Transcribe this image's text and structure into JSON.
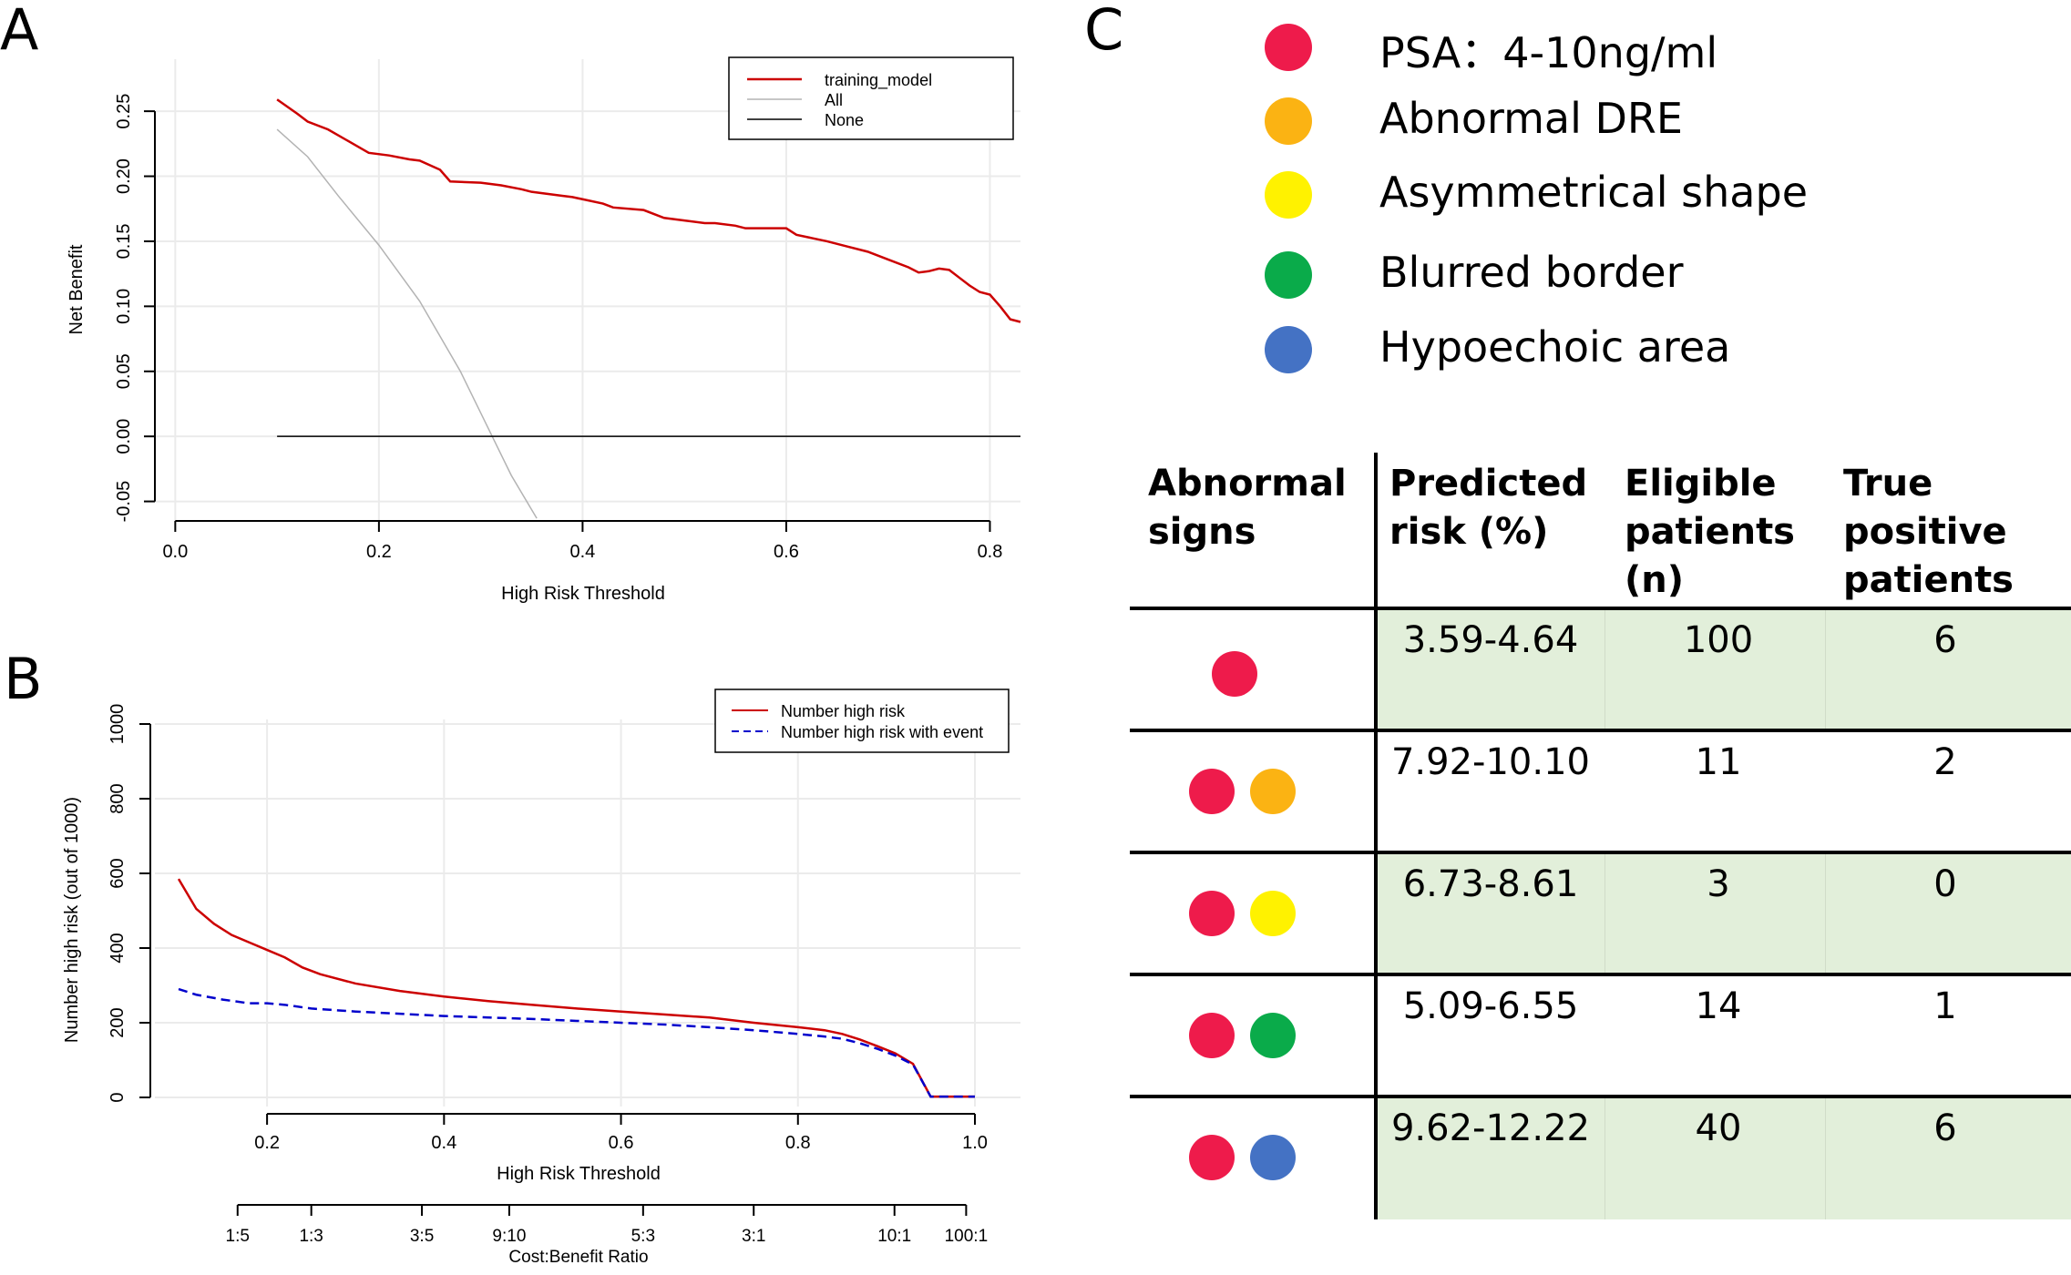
{
  "panel_labels": {
    "a": "A",
    "b": "B",
    "c": "C"
  },
  "colors": {
    "red": "#cc0000",
    "gray": "#b3b3b3",
    "black": "#000000",
    "blue": "#0000cc",
    "grid": "#ebebeb",
    "psa": "#ee1b4b",
    "dre": "#fbb313",
    "shape": "#fff200",
    "border": "#0aab4a",
    "hypo": "#4472c4",
    "row_shade": "#e2efda"
  },
  "chart_data": [
    {
      "type": "line",
      "xlabel": "High Risk Threshold",
      "ylabel": "Net Benefit",
      "xlim": [
        -0.02,
        0.83
      ],
      "ylim": [
        -0.065,
        0.29
      ],
      "x_ticks": [
        "0.0",
        "0.2",
        "0.4",
        "0.6",
        "0.8"
      ],
      "x_tick_values": [
        0.0,
        0.2,
        0.4,
        0.6,
        0.8
      ],
      "y_ticks": [
        "-0.05",
        "0.00",
        "0.05",
        "0.10",
        "0.15",
        "0.20",
        "0.25"
      ],
      "y_tick_values": [
        -0.05,
        0.0,
        0.05,
        0.1,
        0.15,
        0.2,
        0.25
      ],
      "legend": [
        "training_model",
        "All",
        "None"
      ],
      "series": [
        {
          "name": "training_model",
          "x": [
            0.1,
            0.12,
            0.13,
            0.15,
            0.17,
            0.19,
            0.21,
            0.23,
            0.24,
            0.26,
            0.27,
            0.3,
            0.32,
            0.34,
            0.35,
            0.38,
            0.39,
            0.42,
            0.43,
            0.46,
            0.48,
            0.5,
            0.52,
            0.53,
            0.55,
            0.56,
            0.6,
            0.61,
            0.64,
            0.66,
            0.68,
            0.7,
            0.72,
            0.73,
            0.74,
            0.75,
            0.76,
            0.77,
            0.78,
            0.79,
            0.8,
            0.81,
            0.82,
            0.83
          ],
          "y": [
            0.259,
            0.248,
            0.242,
            0.236,
            0.227,
            0.218,
            0.216,
            0.213,
            0.212,
            0.205,
            0.196,
            0.195,
            0.193,
            0.19,
            0.188,
            0.185,
            0.184,
            0.179,
            0.176,
            0.174,
            0.168,
            0.166,
            0.164,
            0.164,
            0.162,
            0.16,
            0.16,
            0.155,
            0.15,
            0.146,
            0.142,
            0.136,
            0.13,
            0.126,
            0.127,
            0.129,
            0.128,
            0.122,
            0.116,
            0.111,
            0.109,
            0.1,
            0.09,
            0.088
          ]
        },
        {
          "name": "All",
          "x": [
            0.1,
            0.13,
            0.16,
            0.2,
            0.24,
            0.28,
            0.31,
            0.33,
            0.355
          ],
          "y": [
            0.236,
            0.215,
            0.185,
            0.147,
            0.104,
            0.05,
            0.002,
            -0.03,
            -0.063
          ]
        },
        {
          "name": "None",
          "x": [
            0.1,
            0.83
          ],
          "y": [
            0.0,
            0.0
          ]
        }
      ]
    },
    {
      "type": "line",
      "xlabel": "High Risk Threshold",
      "ylabel": "Number high risk (out of 1000)",
      "xlim": [
        0.1,
        1.0
      ],
      "ylim": [
        0,
        1000
      ],
      "x_ticks": [
        "0.2",
        "0.4",
        "0.6",
        "0.8",
        "1.0"
      ],
      "x_tick_values": [
        0.2,
        0.4,
        0.6,
        0.8,
        1.0
      ],
      "y_ticks": [
        "0",
        "200",
        "400",
        "600",
        "800",
        "1000"
      ],
      "y_tick_values": [
        0,
        200,
        400,
        600,
        800,
        1000
      ],
      "second_axis_label": "Cost:Benefit Ratio",
      "second_axis_ticks": [
        "1:5",
        "1:3",
        "3:5",
        "9:10",
        "5:3",
        "3:1",
        "10:1",
        "100:1"
      ],
      "second_axis_tick_values": [
        0.1667,
        0.25,
        0.375,
        0.4737,
        0.625,
        0.75,
        0.9091,
        0.9901
      ],
      "legend": [
        "Number high risk",
        "Number high risk with event"
      ],
      "series": [
        {
          "name": "Number high risk",
          "x": [
            0.1,
            0.12,
            0.14,
            0.16,
            0.18,
            0.2,
            0.22,
            0.24,
            0.26,
            0.3,
            0.35,
            0.4,
            0.45,
            0.5,
            0.55,
            0.6,
            0.65,
            0.7,
            0.75,
            0.8,
            0.83,
            0.85,
            0.87,
            0.89,
            0.91,
            0.93,
            0.95,
            0.97,
            1.0
          ],
          "y": [
            585,
            505,
            465,
            435,
            415,
            395,
            375,
            348,
            330,
            305,
            285,
            270,
            258,
            248,
            238,
            230,
            222,
            214,
            200,
            188,
            180,
            170,
            155,
            137,
            118,
            90,
            2,
            2,
            2
          ]
        },
        {
          "name": "Number high risk with event",
          "x": [
            0.1,
            0.12,
            0.15,
            0.18,
            0.2,
            0.22,
            0.25,
            0.3,
            0.35,
            0.4,
            0.45,
            0.5,
            0.55,
            0.6,
            0.65,
            0.7,
            0.75,
            0.8,
            0.83,
            0.85,
            0.87,
            0.89,
            0.91,
            0.93,
            0.95,
            0.97,
            1.0
          ],
          "y": [
            290,
            275,
            262,
            252,
            252,
            248,
            238,
            230,
            224,
            218,
            214,
            210,
            205,
            200,
            195,
            188,
            180,
            170,
            163,
            157,
            145,
            130,
            112,
            88,
            2,
            2,
            2
          ]
        }
      ]
    },
    {
      "type": "table",
      "legend": [
        {
          "label": "PSA：4-10ng/ml",
          "color": "#ee1b4b"
        },
        {
          "label": "Abnormal DRE",
          "color": "#fbb313"
        },
        {
          "label": "Asymmetrical shape",
          "color": "#fff200"
        },
        {
          "label": "Blurred border",
          "color": "#0aab4a"
        },
        {
          "label": "Hypoechoic area",
          "color": "#4472c4"
        }
      ],
      "headers": [
        [
          "Abnormal",
          "signs"
        ],
        [
          "Predicted",
          "risk (%)"
        ],
        [
          "Eligible",
          "patients",
          "(n)"
        ],
        [
          "True",
          "positive",
          "patients (n)"
        ]
      ],
      "rows": [
        {
          "signs": [
            "#ee1b4b"
          ],
          "risk": "3.59-4.64",
          "eligible": "100",
          "true_positive": "6",
          "shaded": true
        },
        {
          "signs": [
            "#ee1b4b",
            "#fbb313"
          ],
          "risk": "7.92-10.10",
          "eligible": "11",
          "true_positive": "2",
          "shaded": false
        },
        {
          "signs": [
            "#ee1b4b",
            "#fff200"
          ],
          "risk": "6.73-8.61",
          "eligible": "3",
          "true_positive": "0",
          "shaded": true
        },
        {
          "signs": [
            "#ee1b4b",
            "#0aab4a"
          ],
          "risk": "5.09-6.55",
          "eligible": "14",
          "true_positive": "1",
          "shaded": false
        },
        {
          "signs": [
            "#ee1b4b",
            "#4472c4"
          ],
          "risk": "9.62-12.22",
          "eligible": "40",
          "true_positive": "6",
          "shaded": true
        }
      ]
    }
  ]
}
